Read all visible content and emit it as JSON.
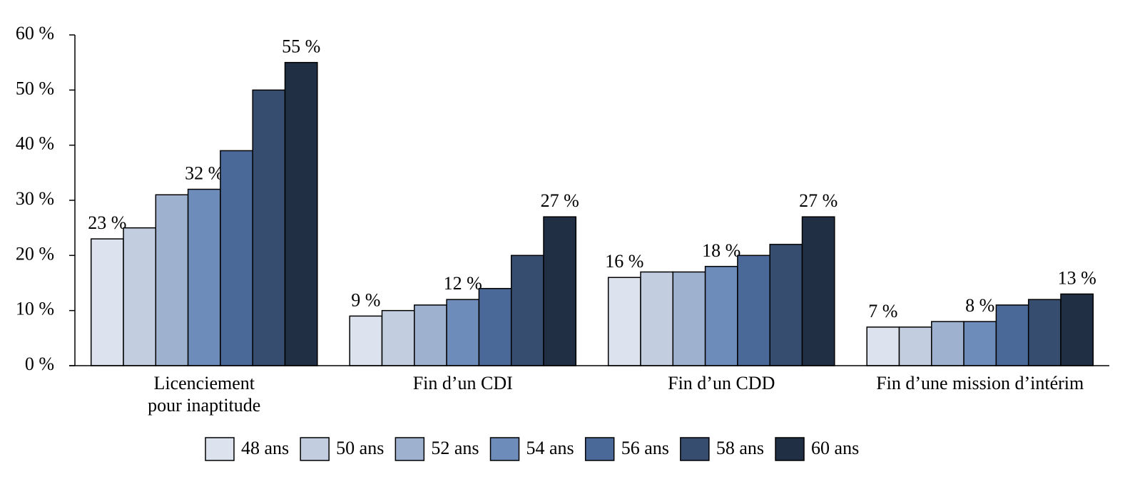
{
  "chart_data": {
    "type": "bar",
    "categories": [
      "Licenciement\npour inaptitude",
      "Fin d’un CDI",
      "Fin d’un CDD",
      "Fin d’une mission d’intérim"
    ],
    "series": [
      {
        "name": "48 ans",
        "color": "#dde3ee",
        "values": [
          23,
          9,
          16,
          7
        ],
        "value_labels": [
          "23 %",
          "9 %",
          "16 %",
          "7 %"
        ]
      },
      {
        "name": "50 ans",
        "color": "#c3cde0",
        "values": [
          25,
          10,
          17,
          7
        ]
      },
      {
        "name": "52 ans",
        "color": "#9eb1cf",
        "values": [
          31,
          11,
          17,
          8
        ]
      },
      {
        "name": "54 ans",
        "color": "#6e8cb9",
        "values": [
          32,
          12,
          18,
          8
        ],
        "value_labels": [
          "32 %",
          "12 %",
          "18 %",
          "8 %"
        ]
      },
      {
        "name": "56 ans",
        "color": "#4a6898",
        "values": [
          39,
          14,
          20,
          11
        ]
      },
      {
        "name": "58 ans",
        "color": "#364d70",
        "values": [
          50,
          20,
          22,
          12
        ]
      },
      {
        "name": "60 ans",
        "color": "#212f45",
        "values": [
          55,
          27,
          27,
          13
        ],
        "value_labels": [
          "55 %",
          "27 %",
          "27 %",
          "13 %"
        ]
      }
    ],
    "ylim": [
      0,
      60
    ],
    "yticks": [
      {
        "value": 0,
        "label": "0 %"
      },
      {
        "value": 10,
        "label": "10 %"
      },
      {
        "value": 20,
        "label": "20 %"
      },
      {
        "value": 30,
        "label": "30 %"
      },
      {
        "value": 40,
        "label": "40 %"
      },
      {
        "value": 50,
        "label": "50 %"
      },
      {
        "value": 60,
        "label": "60 %"
      }
    ],
    "grid": false,
    "legend": "bottom"
  }
}
